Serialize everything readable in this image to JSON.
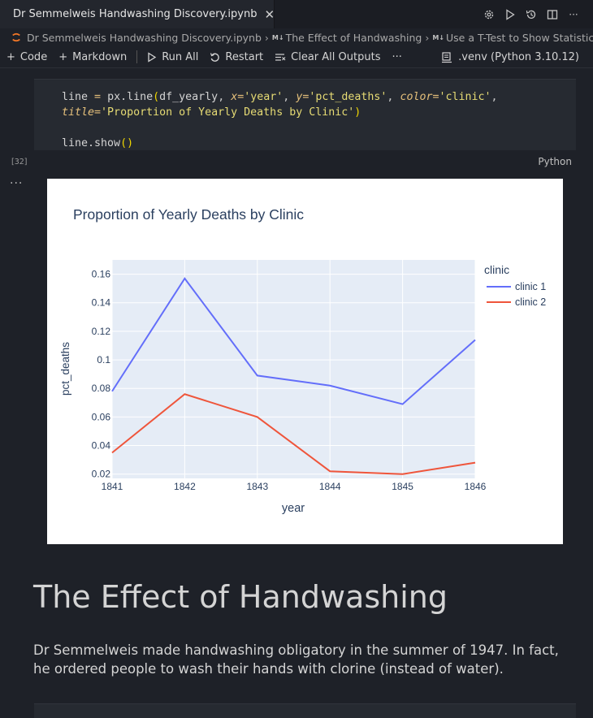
{
  "tab": {
    "title": "Dr Semmelweis Handwashing Discovery.ipynb",
    "close_glyph": "✕"
  },
  "tab_actions": {
    "settings_icon": "gear-icon",
    "run_icon": "play-icon",
    "history_icon": "history-icon",
    "split_icon": "split-editor-icon",
    "more": "···"
  },
  "breadcrumb": {
    "file": "Dr Semmelweis Handwashing Discovery.ipynb",
    "section1": "The Effect of Handwashing",
    "section2": "Use a T-Test to Show Statistica",
    "md_badge": "M↓"
  },
  "toolbar": {
    "code": "Code",
    "markdown": "Markdown",
    "run_all": "Run All",
    "restart": "Restart",
    "clear_outputs": "Clear All Outputs",
    "more": "···",
    "kernel": ".venv (Python 3.10.12)"
  },
  "cell": {
    "execution_count": "[32]",
    "language": "Python",
    "output_more": "···"
  },
  "chart_data": {
    "type": "line",
    "title": "Proportion of Yearly Deaths by Clinic",
    "xlabel": "year",
    "ylabel": "pct_deaths",
    "x": [
      1841,
      1842,
      1843,
      1844,
      1845,
      1846
    ],
    "xlim": [
      1841,
      1846
    ],
    "ylim": [
      0.017,
      0.17
    ],
    "yticks": [
      0.02,
      0.04,
      0.06,
      0.08,
      0.1,
      0.12,
      0.14,
      0.16
    ],
    "ytick_labels": [
      "0.02",
      "0.04",
      "0.06",
      "0.08",
      "0.1",
      "0.12",
      "0.14",
      "0.16"
    ],
    "legend_title": "clinic",
    "legend_position": "right",
    "grid": true,
    "plot_bg": "#e5ecf6",
    "series": [
      {
        "name": "clinic 1",
        "color": "#636efa",
        "values": [
          0.078,
          0.157,
          0.089,
          0.082,
          0.069,
          0.114
        ]
      },
      {
        "name": "clinic 2",
        "color": "#ef553b",
        "values": [
          0.035,
          0.076,
          0.06,
          0.022,
          0.02,
          0.028
        ]
      }
    ]
  },
  "markdown": {
    "heading": "The Effect of Handwashing",
    "paragraph": "Dr Semmelweis made handwashing obligatory in the summer of 1947. In fact, he ordered people to wash their hands with clorine (instead of water)."
  },
  "colors": {
    "accent_orange": "#f37726",
    "editor_bg": "#1e2128",
    "cell_bg": "#262a31"
  }
}
